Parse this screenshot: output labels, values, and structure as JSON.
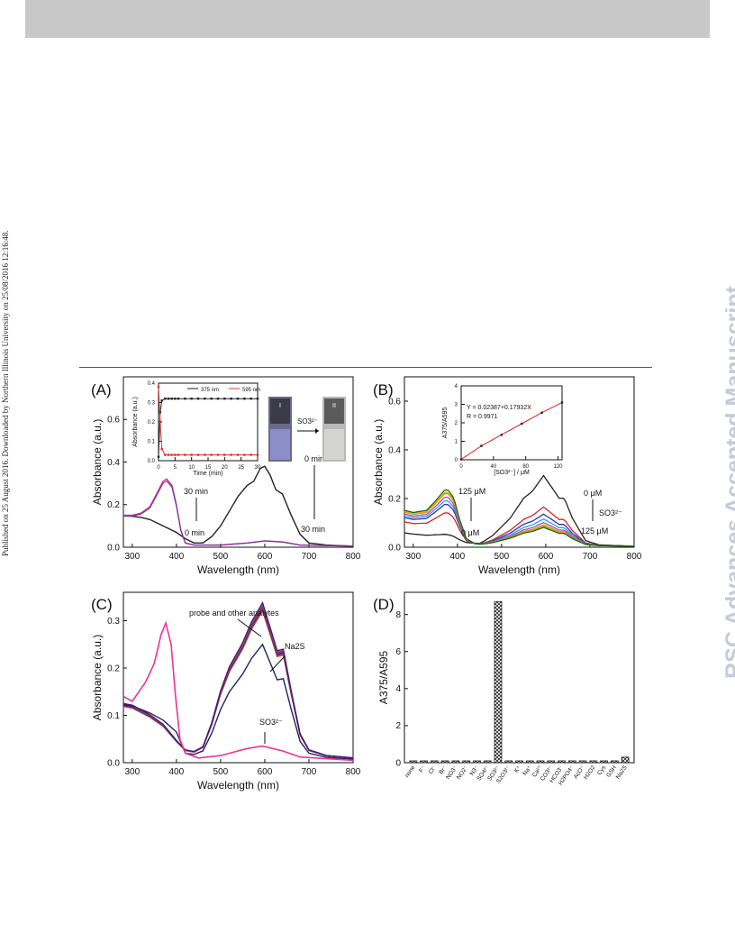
{
  "side_note": "Published on 25 August 2016. Downloaded by Northern Illinois University on 25/08/2016 12:16:48.",
  "watermark": "RSC Advances Accepted Manuscript",
  "chart_data": [
    {
      "panel": "(A)",
      "type": "line",
      "xlabel": "Wavelength (nm)",
      "ylabel": "Absorbance (a.u.)",
      "xlim": [
        280,
        800
      ],
      "ylim": [
        0,
        0.8
      ],
      "xticks": [
        300,
        400,
        500,
        600,
        700,
        800
      ],
      "yticks": [
        0.0,
        0.2,
        0.4,
        0.6
      ],
      "annotations": [
        "30 min",
        "0 min",
        "0 min",
        "30 min"
      ],
      "series": [
        {
          "name": "0 min",
          "color": "#222222",
          "points": [
            [
              280,
              0.15
            ],
            [
              300,
              0.145
            ],
            [
              320,
              0.14
            ],
            [
              340,
              0.13
            ],
            [
              360,
              0.11
            ],
            [
              380,
              0.09
            ],
            [
              400,
              0.07
            ],
            [
              420,
              0.04
            ],
            [
              440,
              0.02
            ],
            [
              460,
              0.02
            ],
            [
              480,
              0.05
            ],
            [
              500,
              0.1
            ],
            [
              520,
              0.17
            ],
            [
              540,
              0.24
            ],
            [
              560,
              0.29
            ],
            [
              575,
              0.31
            ],
            [
              590,
              0.37
            ],
            [
              600,
              0.38
            ],
            [
              612,
              0.34
            ],
            [
              625,
              0.27
            ],
            [
              640,
              0.25
            ],
            [
              660,
              0.15
            ],
            [
              680,
              0.06
            ],
            [
              700,
              0.02
            ],
            [
              740,
              0.01
            ],
            [
              800,
              0.005
            ]
          ]
        },
        {
          "name": "30 min",
          "color": "#cc3377",
          "points": [
            [
              280,
              0.15
            ],
            [
              300,
              0.15
            ],
            [
              320,
              0.16
            ],
            [
              340,
              0.19
            ],
            [
              355,
              0.25
            ],
            [
              370,
              0.31
            ],
            [
              378,
              0.32
            ],
            [
              390,
              0.29
            ],
            [
              400,
              0.2
            ],
            [
              410,
              0.08
            ],
            [
              420,
              0.02
            ],
            [
              440,
              0.01
            ],
            [
              500,
              0.01
            ],
            [
              560,
              0.02
            ],
            [
              600,
              0.03
            ],
            [
              640,
              0.025
            ],
            [
              680,
              0.01
            ],
            [
              800,
              0.005
            ]
          ]
        }
      ],
      "inset": {
        "type": "line",
        "xlabel": "Time (min)",
        "ylabel": "Absorbance (a.u.)",
        "xlim": [
          0,
          30
        ],
        "ylim": [
          0,
          0.4
        ],
        "xticks": [
          0,
          5,
          10,
          15,
          20,
          25,
          30
        ],
        "yticks": [
          0.0,
          0.1,
          0.2,
          0.3,
          0.4
        ],
        "series": [
          {
            "name": "375 nm",
            "color": "#222222",
            "x": [
              0,
              0.5,
              1,
              2,
              3,
              4,
              5,
              6,
              8,
              10,
              12,
              14,
              16,
              18,
              20,
              22,
              24,
              26,
              28,
              30
            ],
            "values": [
              0.02,
              0.25,
              0.31,
              0.32,
              0.32,
              0.32,
              0.32,
              0.32,
              0.32,
              0.32,
              0.32,
              0.32,
              0.32,
              0.32,
              0.32,
              0.32,
              0.32,
              0.32,
              0.32,
              0.32
            ]
          },
          {
            "name": "595 nm",
            "color": "#dd3333",
            "x": [
              0,
              0.5,
              1,
              2,
              3,
              4,
              5,
              6,
              8,
              10,
              12,
              14,
              16,
              18,
              20,
              22,
              24,
              26,
              28,
              30
            ],
            "values": [
              0.38,
              0.2,
              0.06,
              0.03,
              0.03,
              0.03,
              0.03,
              0.03,
              0.03,
              0.03,
              0.03,
              0.03,
              0.03,
              0.03,
              0.03,
              0.03,
              0.03,
              0.03,
              0.03,
              0.03
            ]
          }
        ]
      },
      "photo_label": "SO3²⁻",
      "vial_labels": [
        "I",
        "II"
      ]
    },
    {
      "panel": "(B)",
      "type": "line",
      "xlabel": "Wavelength (nm)",
      "ylabel": "Absorbance (a.u.)",
      "xlim": [
        280,
        800
      ],
      "ylim": [
        0,
        0.7
      ],
      "xticks": [
        300,
        400,
        500,
        600,
        700,
        800
      ],
      "yticks": [
        0.0,
        0.2,
        0.4,
        0.6
      ],
      "annotations": [
        "125 μM",
        "0 μM",
        "0 μM",
        "SO3²⁻",
        "125 μM"
      ],
      "series_colors": [
        "#222222",
        "#dd2222",
        "#2233cc",
        "#22aacc",
        "#cc33cc",
        "#99aa00",
        "#eeaa00",
        "#116611"
      ],
      "peak375": [
        0.03,
        0.12,
        0.155,
        0.17,
        0.185,
        0.2,
        0.205,
        0.215
      ],
      "peak595": [
        0.29,
        0.16,
        0.13,
        0.11,
        0.095,
        0.085,
        0.08,
        0.075
      ],
      "inset": {
        "type": "scatter",
        "xlabel": "[SO3²⁻] / μM",
        "ylabel": "A375/A595",
        "xlim": [
          0,
          125
        ],
        "ylim": [
          0,
          4
        ],
        "xticks": [
          0,
          40,
          80,
          120
        ],
        "yticks": [
          0,
          1,
          2,
          3,
          4
        ],
        "equation": "Y = 0.02387+0.17932X",
        "r": "R = 0.9971",
        "x": [
          0,
          25,
          50,
          75,
          100,
          125
        ],
        "values": [
          0.02,
          0.75,
          1.35,
          1.95,
          2.55,
          3.1
        ]
      }
    },
    {
      "panel": "(C)",
      "type": "line",
      "xlabel": "Wavelength (nm)",
      "ylabel": "Absorbance (a.u.)",
      "xlim": [
        280,
        800
      ],
      "ylim": [
        0,
        0.36
      ],
      "xticks": [
        300,
        400,
        500,
        600,
        700,
        800
      ],
      "yticks": [
        0.0,
        0.1,
        0.2,
        0.3
      ],
      "annotations": [
        "probe and other analytes",
        "Na2S",
        "SO3²⁻"
      ],
      "group_colors": [
        "#ee8800",
        "#cc22cc",
        "#228822",
        "#990099",
        "#aa2222",
        "#3333aa",
        "#dd2222",
        "#2266cc",
        "#888822",
        "#441177"
      ],
      "group_peak": 0.34,
      "na2s_peak": 0.25,
      "so3_color": "#ee3399",
      "so3_points": [
        [
          280,
          0.14
        ],
        [
          300,
          0.13
        ],
        [
          315,
          0.15
        ],
        [
          330,
          0.17
        ],
        [
          350,
          0.21
        ],
        [
          365,
          0.27
        ],
        [
          376,
          0.295
        ],
        [
          388,
          0.25
        ],
        [
          398,
          0.14
        ],
        [
          408,
          0.05
        ],
        [
          420,
          0.02
        ],
        [
          450,
          0.01
        ],
        [
          500,
          0.015
        ],
        [
          560,
          0.03
        ],
        [
          595,
          0.035
        ],
        [
          640,
          0.025
        ],
        [
          680,
          0.012
        ],
        [
          800,
          0.005
        ]
      ]
    },
    {
      "panel": "(D)",
      "type": "bar",
      "ylabel": "A375/A595",
      "ylim": [
        0,
        9.2
      ],
      "yticks": [
        0,
        2,
        4,
        6,
        8
      ],
      "categories": [
        "none",
        "F⁻",
        "Cl⁻",
        "Br⁻",
        "NO3⁻",
        "NO2⁻",
        "N3⁻",
        "SO4²⁻",
        "SO3²⁻",
        "S2O3²⁻",
        "K⁺",
        "Na⁺",
        "Ca²⁺",
        "CO3²⁻",
        "HCO3⁻",
        "H2PO4⁻",
        "AcO⁻",
        "H2O2",
        "Cys",
        "GSH",
        "Na2S"
      ],
      "values": [
        0.1,
        0.1,
        0.1,
        0.1,
        0.1,
        0.1,
        0.1,
        0.1,
        8.7,
        0.1,
        0.1,
        0.1,
        0.1,
        0.1,
        0.1,
        0.1,
        0.1,
        0.1,
        0.1,
        0.1,
        0.3
      ]
    }
  ]
}
